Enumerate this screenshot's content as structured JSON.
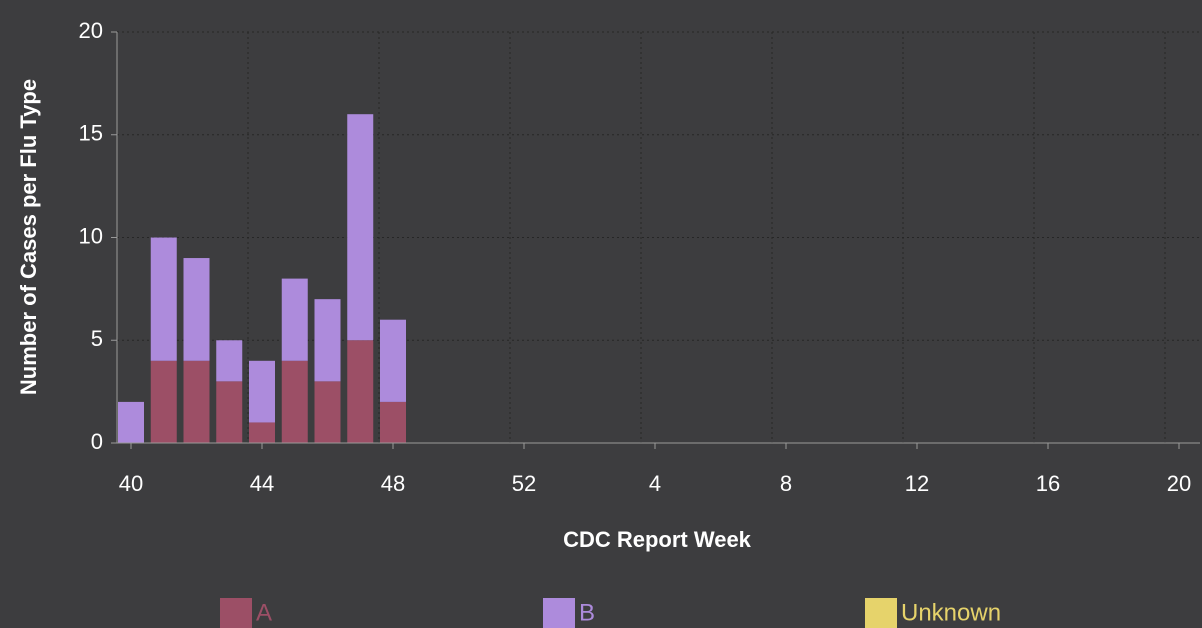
{
  "chart_data": {
    "type": "stacked_bar",
    "x_label": "CDC Report Week",
    "y_label": "Number of Cases per Flu Type",
    "categories": [
      "40",
      null,
      null,
      null,
      "44",
      null,
      null,
      null,
      "48",
      null,
      null,
      null,
      "52",
      null,
      null,
      null,
      "4",
      null,
      null,
      null,
      "8",
      null,
      null,
      null,
      "12",
      null,
      null,
      null,
      "16",
      null,
      null,
      null,
      "20"
    ],
    "series": [
      {
        "name": "A",
        "color": "#9c4f66",
        "values": [
          0,
          4,
          4,
          3,
          1,
          4,
          3,
          5,
          2,
          null,
          null,
          null,
          null,
          null,
          null,
          null,
          null,
          null,
          null,
          null,
          null,
          null,
          null,
          null,
          null,
          null,
          null,
          null,
          null,
          null,
          null,
          null,
          null
        ]
      },
      {
        "name": "B",
        "color": "#ad8bdc",
        "values": [
          2,
          6,
          5,
          2,
          3,
          4,
          4,
          11,
          4,
          null,
          null,
          null,
          null,
          null,
          null,
          null,
          null,
          null,
          null,
          null,
          null,
          null,
          null,
          null,
          null,
          null,
          null,
          null,
          null,
          null,
          null,
          null,
          null
        ]
      },
      {
        "name": "Unknown",
        "color": "#e6d36b",
        "values": [
          0,
          0,
          0,
          0,
          0,
          0,
          0,
          0,
          0,
          null,
          null,
          null,
          null,
          null,
          null,
          null,
          null,
          null,
          null,
          null,
          null,
          null,
          null,
          null,
          null,
          null,
          null,
          null,
          null,
          null,
          null,
          null,
          null
        ]
      }
    ],
    "ylim": [
      0,
      20
    ],
    "yticks": [
      0,
      5,
      10,
      15,
      20
    ],
    "grid": true,
    "legend": "bottom"
  }
}
